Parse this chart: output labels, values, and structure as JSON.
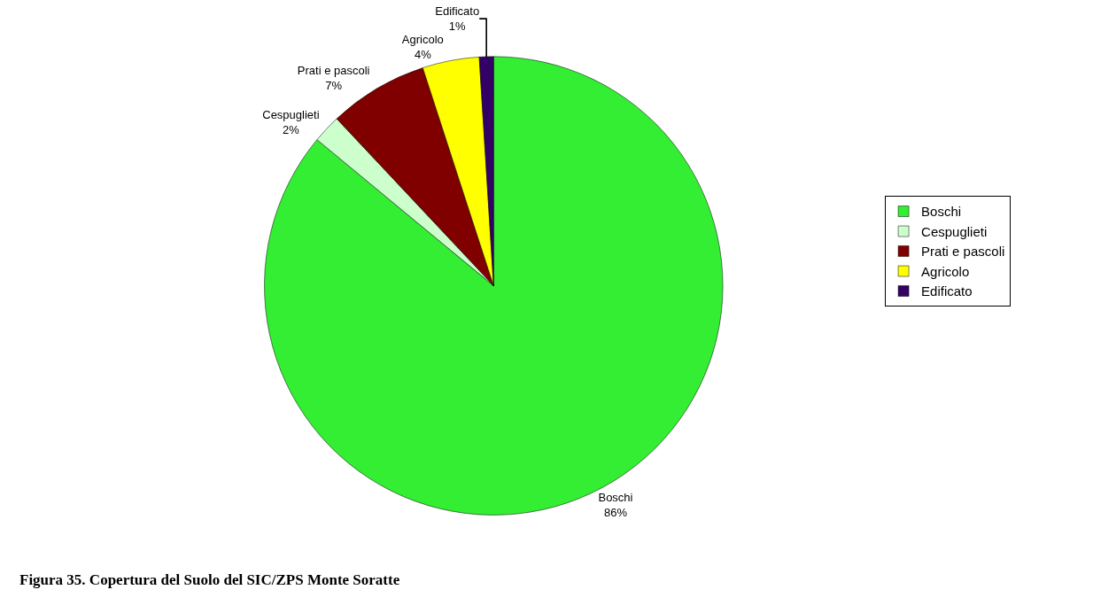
{
  "chart_data": {
    "type": "pie",
    "categories": [
      "Boschi",
      "Cespuglieti",
      "Prati e pascoli",
      "Agricolo",
      "Edificato"
    ],
    "values": [
      86,
      2,
      7,
      4,
      1
    ],
    "value_labels": [
      "86%",
      "2%",
      "7%",
      "4%",
      "1%"
    ],
    "colors": [
      "#33ee33",
      "#ccffcc",
      "#800000",
      "#ffff00",
      "#330066"
    ],
    "legend": "right",
    "annotations": [
      "Figura 35. Copertura del Suolo del SIC/ZPS Monte Soratte"
    ]
  }
}
